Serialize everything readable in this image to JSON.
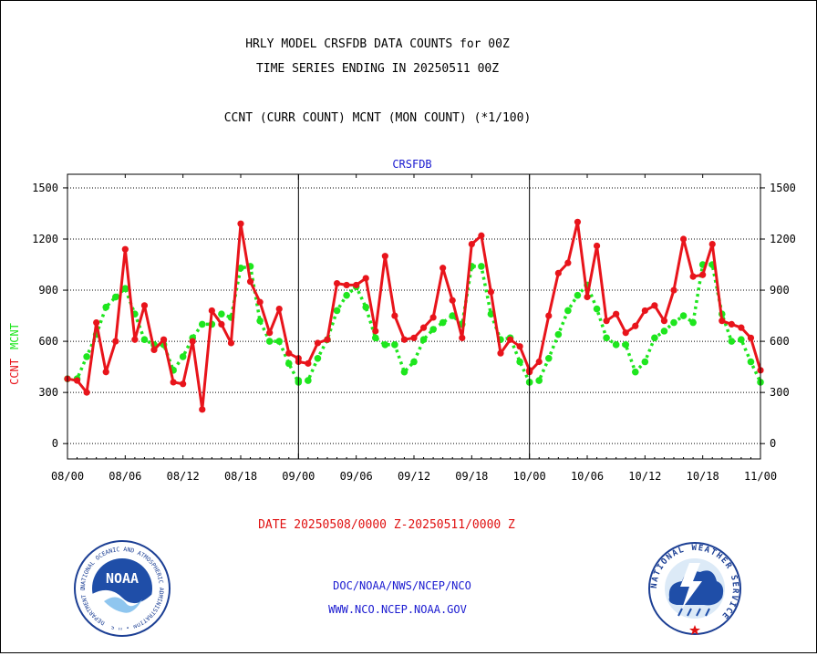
{
  "header": {
    "title_line1": "HRLY MODEL CRSFDB DATA COUNTS for 00Z",
    "title_line2": "TIME SERIES ENDING IN 20250511 00Z",
    "subtitle": "CCNT (CURR COUNT) MCNT (MON COUNT) (*1/100)"
  },
  "footer": {
    "date_range": "DATE 20250508/0000 Z-20250511/0000 Z",
    "org_line": "DOC/NOAA/NWS/NCEP/NCO",
    "website": "WWW.NCO.NCEP.NOAA.GOV"
  },
  "logos": {
    "noaa": {
      "label": "NOAA",
      "ring_text": "NATIONAL OCEANIC AND ATMOSPHERIC ADMINISTRATION • U.S. DEPARTMENT OF COMMERCE"
    },
    "nws": {
      "ring_text": "NATIONAL WEATHER SERVICE"
    }
  },
  "colors": {
    "ccnt": "#e8141b",
    "mcnt": "#1ee61e",
    "accent_blue": "#1a1ad0",
    "grid": "#000000"
  },
  "chart_data": {
    "type": "line",
    "panel_title": "CRSFDB",
    "ylabel_ccnt": "CCNT",
    "ylabel_mcnt": "MCNT",
    "ylim": [
      -90,
      1580
    ],
    "yticks": [
      0,
      300,
      600,
      900,
      1200,
      1500
    ],
    "x_tick_labels": [
      "08/00",
      "08/06",
      "08/12",
      "08/18",
      "09/00",
      "09/06",
      "09/12",
      "09/18",
      "10/00",
      "10/06",
      "10/12",
      "10/18",
      "11/00"
    ],
    "x_hours_per_day": 24,
    "num_days": 3,
    "grid": "horizontal dotted",
    "series": [
      {
        "name": "CCNT",
        "values": [
          [
            380,
            370,
            300,
            710,
            420,
            600,
            1140,
            610,
            810,
            550,
            610,
            360,
            350,
            600,
            200,
            780,
            700,
            590,
            1290,
            950,
            830,
            650,
            790,
            530,
            500
          ],
          [
            480,
            470,
            590,
            610,
            940,
            930,
            930,
            970,
            660,
            1100,
            750,
            610,
            620,
            680,
            740,
            1030,
            840,
            620,
            1170,
            1220,
            890,
            530,
            610,
            570,
            430
          ],
          [
            420,
            480,
            750,
            1000,
            1060,
            1300,
            860,
            1160,
            720,
            760,
            650,
            690,
            780,
            810,
            720,
            900,
            1200,
            980,
            990,
            1170,
            720,
            700,
            680,
            620,
            430
          ]
        ]
      },
      {
        "name": "MCNT",
        "values": [
          [
            380,
            380,
            510,
            640,
            800,
            860,
            910,
            760,
            610,
            580,
            580,
            430,
            510,
            620,
            700,
            700,
            760,
            740,
            1030,
            1040,
            720,
            600,
            600,
            470,
            360
          ],
          [
            370,
            370,
            500,
            610,
            780,
            870,
            920,
            800,
            620,
            580,
            580,
            420,
            480,
            610,
            670,
            710,
            750,
            700,
            1040,
            1040,
            760,
            610,
            620,
            480,
            360
          ],
          [
            360,
            370,
            500,
            640,
            780,
            870,
            930,
            790,
            620,
            580,
            580,
            420,
            480,
            620,
            660,
            710,
            750,
            710,
            1050,
            1050,
            760,
            600,
            610,
            480,
            360
          ]
        ]
      }
    ]
  }
}
